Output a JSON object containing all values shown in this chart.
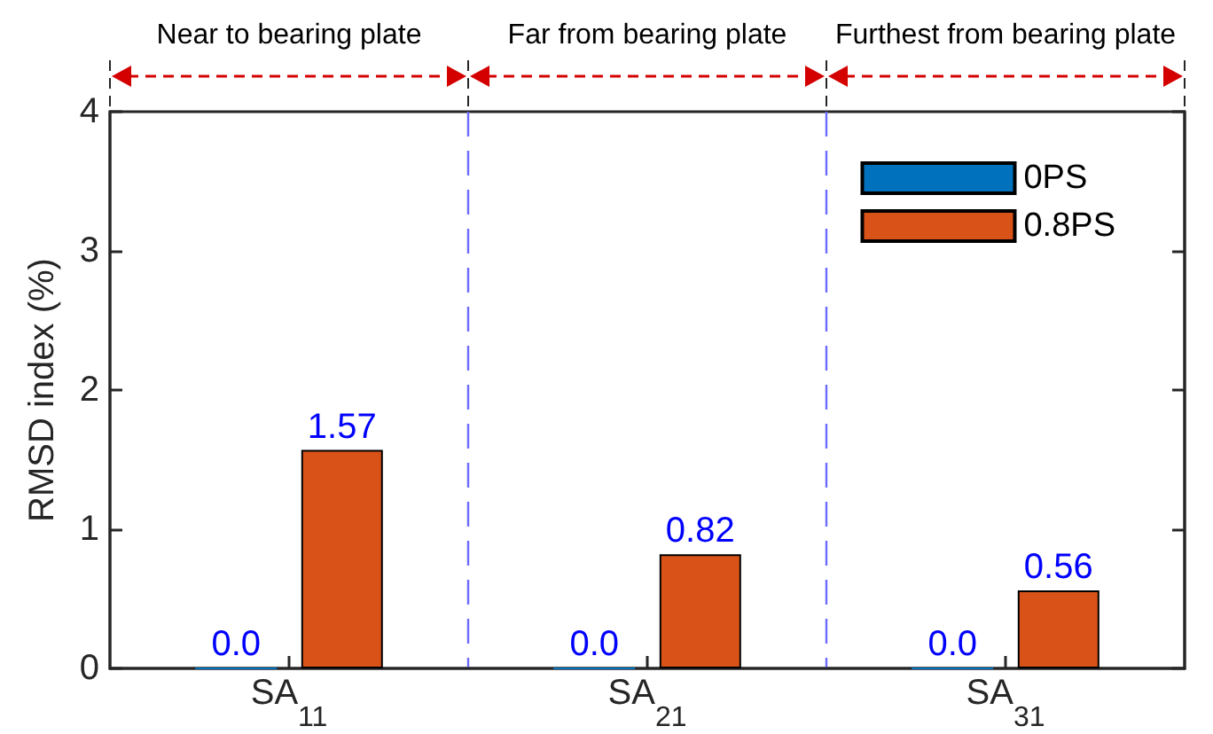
{
  "chart_data": {
    "type": "bar",
    "categories": [
      "SA$_{11}$",
      "SA$_{21}$",
      "SA$_{31}$"
    ],
    "series": [
      {
        "name": "0PS",
        "color": "#0072bd",
        "values": [
          0,
          0,
          0
        ],
        "value_labels": [
          "0.0",
          "0.0",
          "0.0"
        ]
      },
      {
        "name": "0.8PS",
        "color": "#d95319",
        "values": [
          1.57,
          0.82,
          0.56
        ],
        "value_labels": [
          "1.57",
          "0.82",
          "0.56"
        ]
      }
    ],
    "ylabel": "RMSD index (%)",
    "ylim": [
      0,
      4
    ],
    "yticks": [
      0,
      1,
      2,
      3,
      4
    ],
    "legend": "top right",
    "annotations": [
      "Near to bearing plate",
      "Far from bearing plate",
      "Furthest from bearing plate"
    ]
  }
}
